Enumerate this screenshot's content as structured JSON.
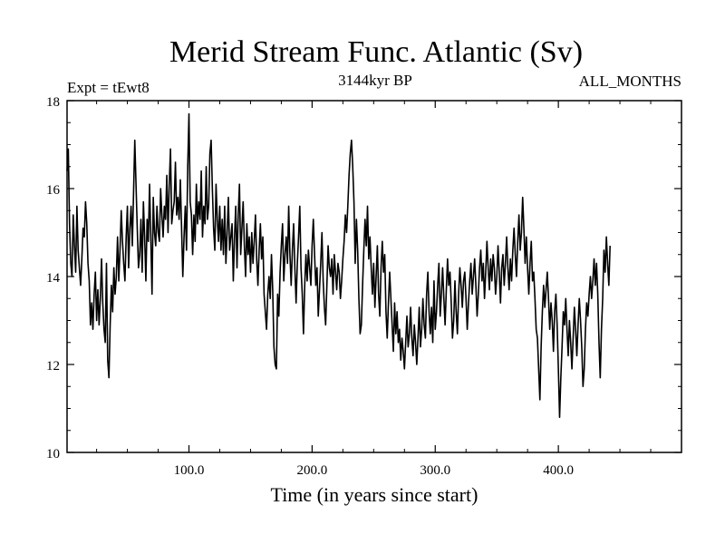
{
  "chart_data": {
    "type": "line",
    "title": "Merid Stream Func. Atlantic (Sv)",
    "subtitle_left": "Expt = tEwt8",
    "subtitle_center": "3144kyr BP",
    "subtitle_right": "ALL_MONTHS",
    "xlabel": "Time (in years since start)",
    "ylabel": "",
    "xlim": [
      1,
      500
    ],
    "ylim": [
      10,
      18
    ],
    "x_ticks": [
      100,
      200,
      300,
      400
    ],
    "x_tick_labels": [
      "100.0",
      "200.0",
      "300.0",
      "400.0"
    ],
    "y_ticks": [
      10,
      12,
      14,
      16,
      18
    ],
    "y_tick_labels": [
      "10",
      "12",
      "14",
      "16",
      "18"
    ],
    "grid": false,
    "series": [
      {
        "name": "Merid Stream Func. Atlantic",
        "x_start": 1,
        "x_step": 1,
        "values": [
          16.4,
          16.9,
          15.2,
          14.3,
          14.0,
          15.4,
          14.7,
          14.1,
          15.6,
          14.6,
          14.2,
          13.8,
          14.4,
          15.1,
          14.9,
          15.7,
          15.2,
          14.3,
          13.9,
          12.9,
          13.4,
          12.8,
          13.6,
          14.1,
          13.0,
          13.7,
          12.9,
          13.5,
          14.4,
          13.4,
          12.8,
          12.5,
          14.3,
          12.1,
          11.7,
          12.9,
          13.8,
          13.2,
          14.2,
          13.6,
          14.0,
          14.9,
          13.9,
          14.6,
          15.5,
          14.8,
          14.3,
          13.9,
          14.9,
          15.6,
          14.2,
          15.1,
          15.6,
          14.7,
          15.9,
          17.1,
          16.1,
          15.1,
          14.2,
          14.5,
          15.3,
          14.1,
          15.7,
          14.9,
          13.9,
          15.3,
          14.8,
          16.1,
          14.9,
          13.6,
          15.8,
          15.0,
          14.7,
          15.6,
          15.0,
          14.8,
          16.0,
          15.4,
          14.9,
          15.6,
          15.3,
          16.3,
          15.0,
          16.1,
          16.9,
          15.2,
          15.5,
          15.7,
          16.6,
          15.4,
          15.8,
          15.3,
          16.2,
          15.1,
          14.0,
          14.9,
          15.6,
          14.6,
          16.5,
          17.7,
          15.7,
          15.4,
          14.5,
          15.4,
          14.8,
          16.1,
          15.2,
          15.7,
          15.3,
          16.4,
          14.9,
          15.6,
          15.2,
          16.5,
          15.3,
          15.6,
          16.8,
          17.1,
          16.0,
          15.1,
          14.6,
          16.1,
          15.3,
          14.8,
          15.6,
          14.6,
          15.3,
          14.5,
          15.6,
          14.3,
          15.0,
          15.8,
          14.6,
          14.9,
          15.2,
          13.9,
          14.9,
          15.6,
          14.2,
          15.4,
          16.1,
          14.5,
          15.1,
          15.7,
          14.7,
          14.0,
          15.2,
          14.5,
          14.9,
          14.1,
          15.0,
          14.3,
          14.8,
          15.4,
          14.4,
          13.8,
          14.6,
          15.2,
          14.4,
          14.9,
          13.6,
          13.2,
          12.8,
          13.6,
          14.0,
          13.5,
          14.5,
          13.7,
          12.4,
          12.0,
          11.9,
          13.6,
          13.1,
          14.1,
          14.7,
          15.2,
          13.9,
          14.5,
          14.9,
          14.3,
          15.6,
          14.5,
          13.8,
          14.6,
          15.2,
          14.2,
          13.4,
          14.3,
          14.9,
          15.6,
          14.2,
          13.6,
          12.7,
          13.8,
          14.5,
          13.9,
          14.6,
          14.2,
          13.8,
          14.7,
          15.3,
          14.5,
          13.8,
          14.2,
          13.1,
          13.7,
          14.3,
          15.0,
          13.9,
          13.3,
          12.9,
          13.8,
          14.7,
          14.2,
          14.0,
          14.4,
          13.6,
          14.5,
          14.1,
          13.7,
          14.3,
          14.1,
          13.5,
          13.9,
          14.4,
          14.8,
          15.4,
          15.0,
          15.6,
          16.3,
          16.8,
          17.1,
          16.5,
          15.7,
          14.3,
          15.3,
          14.6,
          13.5,
          12.7,
          12.9,
          13.8,
          14.6,
          15.3,
          14.7,
          15.6,
          14.4,
          14.9,
          14.2,
          13.6,
          14.3,
          13.3,
          14.0,
          14.7,
          13.6,
          13.1,
          14.2,
          14.8,
          14.1,
          14.5,
          13.2,
          12.6,
          13.4,
          14.1,
          13.5,
          12.9,
          12.3,
          13.4,
          12.7,
          13.2,
          12.5,
          12.8,
          12.1,
          12.6,
          12.3,
          11.9,
          12.5,
          13.1,
          12.4,
          12.7,
          13.3,
          12.6,
          12.2,
          12.9,
          12.5,
          12.0,
          12.6,
          13.3,
          12.4,
          12.8,
          13.5,
          12.9,
          12.6,
          13.6,
          14.1,
          13.2,
          12.7,
          13.3,
          12.5,
          13.9,
          12.8,
          13.2,
          13.8,
          14.3,
          13.1,
          13.6,
          14.2,
          13.5,
          12.9,
          13.7,
          14.4,
          13.8,
          14.1,
          13.4,
          12.6,
          13.0,
          13.9,
          13.2,
          12.7,
          13.6,
          14.2,
          13.8,
          13.3,
          13.9,
          14.1,
          13.5,
          12.8,
          13.4,
          13.9,
          14.3,
          13.6,
          14.0,
          14.4,
          13.8,
          13.1,
          13.6,
          14.2,
          14.6,
          13.9,
          14.3,
          13.5,
          14.1,
          14.8,
          14.2,
          13.7,
          14.4,
          13.9,
          14.5,
          14.2,
          13.6,
          14.0,
          14.7,
          14.1,
          13.4,
          14.2,
          14.5,
          13.8,
          14.3,
          14.9,
          14.2,
          13.7,
          14.4,
          13.9,
          14.6,
          15.1,
          14.5,
          14.0,
          14.8,
          15.4,
          14.6,
          15.0,
          15.8,
          15.1,
          14.3,
          14.9,
          14.2,
          13.6,
          14.3,
          14.8,
          13.9,
          14.1,
          13.5,
          12.8,
          12.6,
          11.9,
          11.2,
          12.4,
          13.2,
          13.8,
          13.3,
          13.7,
          14.1,
          13.5,
          12.8,
          13.4,
          13.0,
          12.3,
          13.2,
          13.6,
          12.9,
          11.9,
          10.8,
          11.7,
          12.4,
          13.2,
          12.9,
          13.5,
          12.8,
          12.2,
          13.0,
          12.5,
          11.9,
          12.6,
          13.3,
          12.8,
          12.2,
          12.9,
          13.5,
          13.0,
          12.4,
          11.5,
          11.9,
          12.8,
          13.4,
          13.1,
          13.6,
          14.0,
          13.5,
          13.9,
          14.4,
          13.8,
          14.3,
          13.6,
          12.5,
          11.7,
          12.8,
          13.5,
          14.6,
          14.1,
          14.9,
          14.3,
          13.8,
          14.7
        ]
      }
    ]
  }
}
